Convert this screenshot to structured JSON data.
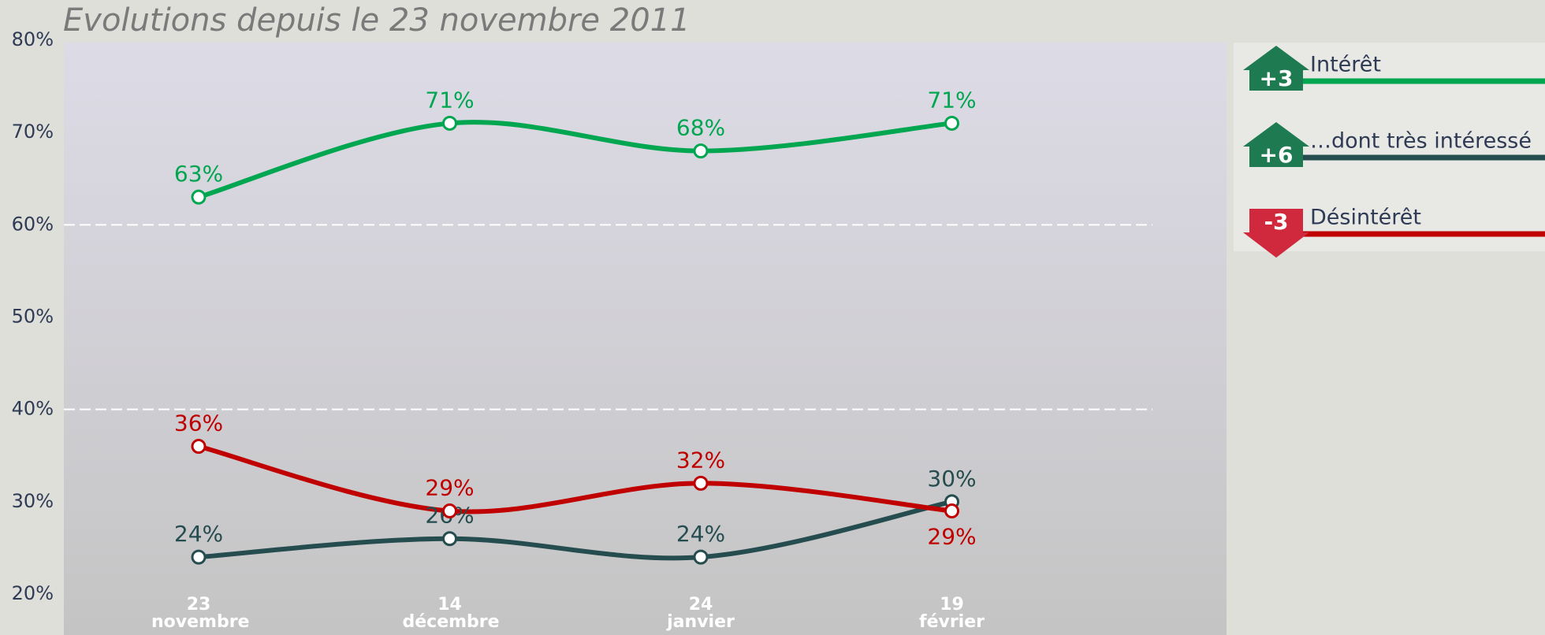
{
  "chart_data": {
    "type": "line",
    "title": "Evolutions depuis le 23 novembre 2011",
    "categories": [
      "23 novembre",
      "14 décembre",
      "24 janvier",
      "19 février"
    ],
    "ylim": [
      20,
      80
    ],
    "yticks": [
      {
        "value": 20,
        "label": "20%"
      },
      {
        "value": 30,
        "label": "30%"
      },
      {
        "value": 40,
        "label": "40%"
      },
      {
        "value": 50,
        "label": "50%"
      },
      {
        "value": 60,
        "label": "60%"
      },
      {
        "value": 70,
        "label": "70%"
      },
      {
        "value": 80,
        "label": "80%"
      }
    ],
    "gridlines": [
      40,
      60
    ],
    "series": [
      {
        "name": "Intérêt",
        "color": "#00a650",
        "values": [
          63,
          71,
          68,
          71
        ],
        "value_labels": [
          "63%",
          "71%",
          "68%",
          "71%"
        ],
        "change": {
          "value": 3,
          "label": "+3"
        }
      },
      {
        "name": "…dont très intéressé",
        "color": "#254c4e",
        "values": [
          24,
          26,
          24,
          30
        ],
        "value_labels": [
          "24%",
          "26%",
          "24%",
          "30%"
        ],
        "change": {
          "value": 6,
          "label": "+6"
        }
      },
      {
        "name": "Désintérêt",
        "color": "#c00000",
        "values": [
          36,
          29,
          32,
          29
        ],
        "value_labels": [
          "36%",
          "29%",
          "32%",
          "29%"
        ],
        "change": {
          "value": -3,
          "label": "-3"
        }
      }
    ]
  }
}
